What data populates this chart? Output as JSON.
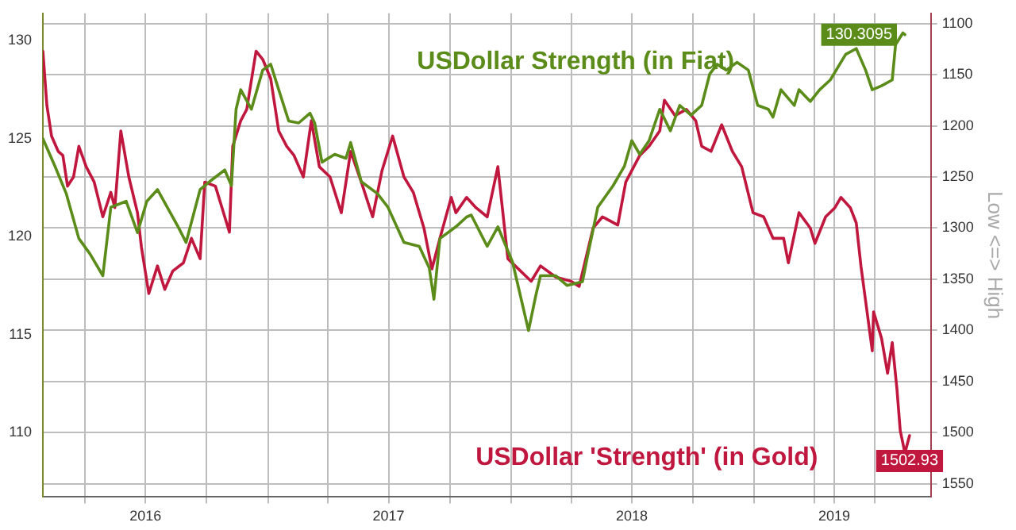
{
  "chart_data": {
    "type": "line",
    "y2label": "Low <=> High",
    "xlim": [
      "2016-01-29",
      "2019-09-23"
    ],
    "ylim": [
      106.7,
      131.4
    ],
    "y2lim": [
      1563,
      1090
    ],
    "yticks": [
      110,
      115,
      120,
      125,
      130
    ],
    "y2ticks": [
      1100,
      1150,
      1200,
      1250,
      1300,
      1350,
      1400,
      1450,
      1500,
      1550
    ],
    "xticks": [
      {
        "value": "2016-04-01",
        "label": null
      },
      {
        "value": "2016-07-01",
        "label": "2016"
      },
      {
        "value": "2016-10-01",
        "label": null
      },
      {
        "value": "2017-01-01",
        "label": null
      },
      {
        "value": "2017-04-01",
        "label": null
      },
      {
        "value": "2017-07-01",
        "label": "2017"
      },
      {
        "value": "2017-10-01",
        "label": null
      },
      {
        "value": "2018-01-01",
        "label": null
      },
      {
        "value": "2018-04-01",
        "label": null
      },
      {
        "value": "2018-07-01",
        "label": "2018"
      },
      {
        "value": "2018-10-01",
        "label": null
      },
      {
        "value": "2019-01-01",
        "label": null
      },
      {
        "value": "2019-04-01",
        "label": null
      },
      {
        "value": "2019-05-01",
        "label": "2019"
      },
      {
        "value": "2019-07-01",
        "label": null
      }
    ],
    "grid": true,
    "marker": "none",
    "line_style": "solid",
    "series": [
      {
        "name": "USDollar Strength (in Fiat)",
        "color": "#5b8c1a",
        "x": [
          "2016-01-29",
          "2016-02-16",
          "2016-03-04",
          "2016-03-23",
          "2016-04-09",
          "2016-04-28",
          "2016-05-10",
          "2016-06-02",
          "2016-06-19",
          "2016-07-03",
          "2016-07-19",
          "2016-08-19",
          "2016-08-31",
          "2016-09-21",
          "2016-10-05",
          "2016-10-28",
          "2016-11-07",
          "2016-11-14",
          "2016-11-21",
          "2016-12-07",
          "2016-12-24",
          "2017-01-05",
          "2017-01-17",
          "2017-02-01",
          "2017-02-16",
          "2017-03-05",
          "2017-03-12",
          "2017-03-23",
          "2017-04-11",
          "2017-04-28",
          "2017-05-05",
          "2017-05-21",
          "2017-06-14",
          "2017-06-30",
          "2017-07-24",
          "2017-08-16",
          "2017-08-31",
          "2017-09-07",
          "2017-09-16",
          "2017-10-10",
          "2017-10-26",
          "2017-11-02",
          "2017-11-26",
          "2017-12-12",
          "2018-01-03",
          "2018-01-27",
          "2018-02-07",
          "2018-02-14",
          "2018-03-09",
          "2018-03-26",
          "2018-04-18",
          "2018-04-25",
          "2018-05-11",
          "2018-06-03",
          "2018-06-20",
          "2018-07-01",
          "2018-07-13",
          "2018-07-27",
          "2018-08-12",
          "2018-08-28",
          "2018-09-11",
          "2018-09-28",
          "2018-10-14",
          "2018-10-26",
          "2018-11-06",
          "2018-11-20",
          "2018-12-06",
          "2018-12-23",
          "2019-01-06",
          "2019-01-22",
          "2019-01-29",
          "2019-02-10",
          "2019-03-02",
          "2019-03-09",
          "2019-03-26",
          "2019-04-09",
          "2019-04-25",
          "2019-05-18",
          "2019-06-03",
          "2019-06-17",
          "2019-06-27",
          "2019-07-11",
          "2019-07-27",
          "2019-08-01",
          "2019-08-12",
          "2019-08-15"
        ],
        "values": [
          125.0,
          123.6,
          122.2,
          119.9,
          119.1,
          118.0,
          121.5,
          121.8,
          120.2,
          121.8,
          122.4,
          120.5,
          119.7,
          122.4,
          122.8,
          123.4,
          122.6,
          126.5,
          127.5,
          126.5,
          128.5,
          128.8,
          127.5,
          125.9,
          125.8,
          126.3,
          125.8,
          123.8,
          124.2,
          124.0,
          124.8,
          122.8,
          122.2,
          121.5,
          119.7,
          119.5,
          118.4,
          116.8,
          119.9,
          120.5,
          121.0,
          121.1,
          119.5,
          120.5,
          118.7,
          115.2,
          117.0,
          118.0,
          118.0,
          117.5,
          117.7,
          118.9,
          121.5,
          122.6,
          123.6,
          124.9,
          124.2,
          124.9,
          126.5,
          125.4,
          126.7,
          126.2,
          126.7,
          128.3,
          128.8,
          128.5,
          128.9,
          128.5,
          126.7,
          126.5,
          126.1,
          127.5,
          126.7,
          127.5,
          126.9,
          127.5,
          128.0,
          129.3,
          129.6,
          128.5,
          127.5,
          127.7,
          128.0,
          129.8,
          130.4,
          130.3095
        ],
        "value_labels": [
          null,
          null,
          null,
          null,
          null,
          null,
          null,
          null,
          null,
          null,
          null,
          null,
          null,
          null,
          null,
          null,
          null,
          null,
          null,
          null,
          null,
          null,
          null,
          null,
          null,
          null,
          null,
          null,
          null,
          null,
          null,
          null,
          null,
          null,
          null,
          null,
          null,
          null,
          null,
          null,
          null,
          null,
          null,
          null,
          null,
          null,
          null,
          null,
          null,
          null,
          null,
          null,
          null,
          null,
          null,
          null,
          null,
          null,
          null,
          null,
          null,
          null,
          null,
          null,
          null,
          null,
          null,
          null,
          null,
          null,
          null,
          null,
          null,
          null,
          null,
          null,
          null,
          null,
          null,
          null,
          null,
          null,
          null,
          null,
          null,
          "130.3095"
        ]
      },
      {
        "name": "USDollar 'Strength' (in Gold)",
        "color": "#c0173f",
        "axis": "y2",
        "x": [
          "2016-01-29",
          "2016-02-04",
          "2016-02-11",
          "2016-02-21",
          "2016-02-28",
          "2016-03-06",
          "2016-03-15",
          "2016-03-23",
          "2016-04-03",
          "2016-04-15",
          "2016-04-28",
          "2016-05-10",
          "2016-05-16",
          "2016-05-25",
          "2016-06-06",
          "2016-06-19",
          "2016-06-25",
          "2016-07-06",
          "2016-07-19",
          "2016-07-30",
          "2016-08-11",
          "2016-08-27",
          "2016-09-08",
          "2016-09-21",
          "2016-09-28",
          "2016-10-14",
          "2016-10-28",
          "2016-11-04",
          "2016-11-09",
          "2016-11-21",
          "2016-11-30",
          "2016-12-14",
          "2016-12-24",
          "2017-01-05",
          "2017-01-17",
          "2017-01-29",
          "2017-02-09",
          "2017-02-23",
          "2017-03-07",
          "2017-03-19",
          "2017-04-04",
          "2017-04-21",
          "2017-05-05",
          "2017-05-21",
          "2017-06-07",
          "2017-06-21",
          "2017-07-07",
          "2017-07-24",
          "2017-08-07",
          "2017-08-23",
          "2017-09-04",
          "2017-09-16",
          "2017-10-03",
          "2017-10-10",
          "2017-10-26",
          "2017-11-09",
          "2017-11-26",
          "2017-12-12",
          "2017-12-27",
          "2018-01-31",
          "2018-02-14",
          "2018-03-09",
          "2018-04-01",
          "2018-04-13",
          "2018-05-04",
          "2018-05-18",
          "2018-06-10",
          "2018-06-22",
          "2018-07-13",
          "2018-07-27",
          "2018-08-12",
          "2018-08-19",
          "2018-09-04",
          "2018-09-21",
          "2018-10-05",
          "2018-10-14",
          "2018-10-28",
          "2018-11-13",
          "2018-11-29",
          "2018-12-13",
          "2018-12-30",
          "2019-01-15",
          "2019-01-29",
          "2019-02-14",
          "2019-02-21",
          "2019-03-09",
          "2019-03-26",
          "2019-04-02",
          "2019-04-18",
          "2019-05-02",
          "2019-05-11",
          "2019-05-25",
          "2019-06-03",
          "2019-06-10",
          "2019-06-27",
          "2019-06-29",
          "2019-07-11",
          "2019-07-20",
          "2019-07-27",
          "2019-08-03",
          "2019-08-08",
          "2019-08-15",
          "2019-08-22"
        ],
        "values": [
          1127,
          1180,
          1210,
          1225,
          1229,
          1259,
          1250,
          1220,
          1240,
          1255,
          1289,
          1265,
          1280,
          1205,
          1250,
          1285,
          1319,
          1364,
          1337,
          1360,
          1342,
          1334,
          1310,
          1330,
          1255,
          1259,
          1289,
          1304,
          1220,
          1195,
          1184,
          1127,
          1135,
          1154,
          1205,
          1220,
          1229,
          1250,
          1195,
          1240,
          1250,
          1285,
          1225,
          1255,
          1289,
          1244,
          1210,
          1250,
          1265,
          1300,
          1340,
          1310,
          1270,
          1285,
          1270,
          1280,
          1289,
          1240,
          1330,
          1352,
          1337,
          1348,
          1352,
          1357,
          1300,
          1289,
          1297,
          1255,
          1229,
          1220,
          1205,
          1175,
          1190,
          1184,
          1195,
          1220,
          1225,
          1199,
          1225,
          1240,
          1285,
          1289,
          1310,
          1310,
          1334,
          1285,
          1300,
          1315,
          1289,
          1280,
          1270,
          1280,
          1295,
          1337,
          1420,
          1382,
          1408,
          1442,
          1412,
          1457,
          1498,
          1520,
          1502.93
        ],
        "value_labels": [
          null,
          null,
          null,
          null,
          null,
          null,
          null,
          null,
          null,
          null,
          null,
          null,
          null,
          null,
          null,
          null,
          null,
          null,
          null,
          null,
          null,
          null,
          null,
          null,
          null,
          null,
          null,
          null,
          null,
          null,
          null,
          null,
          null,
          null,
          null,
          null,
          null,
          null,
          null,
          null,
          null,
          null,
          null,
          null,
          null,
          null,
          null,
          null,
          null,
          null,
          null,
          null,
          null,
          null,
          null,
          null,
          null,
          null,
          null,
          null,
          null,
          null,
          null,
          null,
          null,
          null,
          null,
          null,
          null,
          null,
          null,
          null,
          null,
          null,
          null,
          null,
          null,
          null,
          null,
          null,
          null,
          null,
          null,
          null,
          null,
          null,
          null,
          null,
          null,
          null,
          null,
          null,
          null,
          null,
          null,
          null,
          null,
          null,
          null,
          null,
          null,
          null,
          "1502.93"
        ]
      }
    ]
  }
}
